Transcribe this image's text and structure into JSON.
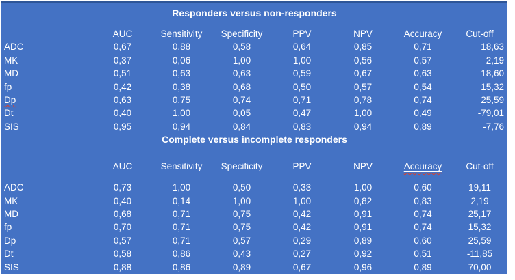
{
  "colors": {
    "panel_blue": "#4472c4",
    "top_border_blue": "#2e5597",
    "text_white": "#ffffff",
    "squiggle_red": "#d8402c"
  },
  "tables": [
    {
      "title": "Responders versus non-responders",
      "columns": [
        "",
        "AUC",
        "Sensitivity",
        "Specificity",
        "PPV",
        "NPV",
        "Accuracy",
        "Cut-off"
      ],
      "cutoff_align": "right",
      "header_marks": {},
      "rows": [
        {
          "label": "ADC",
          "values": [
            "0,67",
            "0,88",
            "0,58",
            "0,64",
            "0,85",
            "0,71",
            "18,63"
          ]
        },
        {
          "label": "MK",
          "values": [
            "0,37",
            "0,06",
            "1,00",
            "1,00",
            "0,56",
            "0,57",
            "2,19"
          ]
        },
        {
          "label": "MD",
          "values": [
            "0,51",
            "0,63",
            "0,63",
            "0,59",
            "0,67",
            "0,63",
            "18,60"
          ]
        },
        {
          "label": "fp",
          "values": [
            "0,42",
            "0,38",
            "0,68",
            "0,50",
            "0,57",
            "0,54",
            "15,32"
          ]
        },
        {
          "label": "Dp",
          "squiggle": true,
          "values": [
            "0,63",
            "0,75",
            "0,74",
            "0,71",
            "0,78",
            "0,74",
            "25,59"
          ]
        },
        {
          "label": "Dt",
          "values": [
            "0,40",
            "1,00",
            "0,05",
            "0,47",
            "1,00",
            "0,49",
            "-79,01"
          ]
        },
        {
          "label": "SIS",
          "values": [
            "0,95",
            "0,94",
            "0,84",
            "0,83",
            "0,94",
            "0,89",
            "-7,76"
          ]
        }
      ]
    },
    {
      "title": "Complete versus incomplete responders",
      "columns": [
        "",
        "AUC",
        "Sensitivity",
        "Specificity",
        "PPV",
        "NPV",
        "Accuracy",
        "Cut-off"
      ],
      "cutoff_align": "center",
      "header_marks": {
        "6": {
          "underline": true,
          "squiggle": true
        }
      },
      "rows": [
        {
          "label": "ADC",
          "values": [
            "0,73",
            "1,00",
            "0,50",
            "0,33",
            "1,00",
            "0,60",
            "19,11"
          ]
        },
        {
          "label": "MK",
          "values": [
            "0,40",
            "0,14",
            "1,00",
            "1,00",
            "0,82",
            "0,83",
            "2,19"
          ]
        },
        {
          "label": "MD",
          "values": [
            "0,68",
            "0,71",
            "0,75",
            "0,42",
            "0,91",
            "0,74",
            "25,17"
          ]
        },
        {
          "label": "fp",
          "values": [
            "0,70",
            "0,71",
            "0,75",
            "0,42",
            "0,91",
            "0,74",
            "15,32"
          ]
        },
        {
          "label": "Dp",
          "values": [
            "0,57",
            "0,71",
            "0,57",
            "0,29",
            "0,89",
            "0,60",
            "25,59"
          ]
        },
        {
          "label": "Dt",
          "values": [
            "0,58",
            "0,86",
            "0,43",
            "0,27",
            "0,92",
            "0,51",
            "-11,85"
          ]
        },
        {
          "label": "SIS",
          "values": [
            "0,88",
            "0,86",
            "0,89",
            "0,67",
            "0,96",
            "0,89",
            "70,00"
          ]
        }
      ]
    }
  ]
}
